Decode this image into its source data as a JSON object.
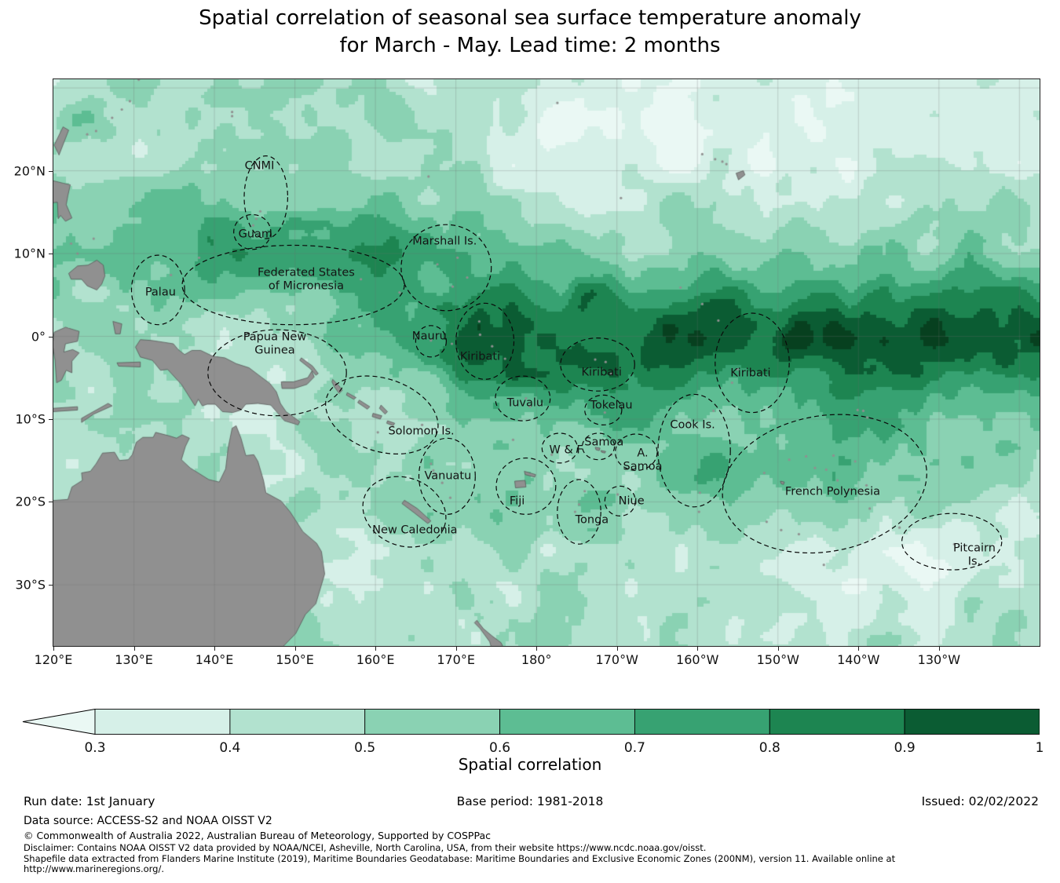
{
  "title": {
    "line1": "Spatial correlation of seasonal sea surface temperature anomaly",
    "line2": "for March - May. Lead time: 2 months"
  },
  "chart_data": {
    "type": "heatmap",
    "title": "Spatial correlation of seasonal sea surface temperature anomaly for March - May. Lead time: 2 months",
    "x_axis": {
      "tick_labels": [
        "120°E",
        "130°E",
        "140°E",
        "150°E",
        "160°E",
        "170°E",
        "180°",
        "170°W",
        "160°W",
        "150°W",
        "140°W",
        "130°W"
      ],
      "ticks_deg_east": [
        120,
        130,
        140,
        150,
        160,
        170,
        180,
        190,
        200,
        210,
        220,
        230
      ],
      "range_deg_east": [
        120,
        242.5
      ]
    },
    "y_axis": {
      "tick_labels": [
        "20°N",
        "10°N",
        "0°",
        "10°S",
        "20°S",
        "30°S"
      ],
      "ticks_deg_north": [
        20,
        10,
        0,
        -10,
        -20,
        -30
      ],
      "range_deg_north": [
        -37.4,
        31.05
      ]
    },
    "colorbar": {
      "label": "Spatial correlation",
      "tick_labels": [
        "0.3",
        "0.4",
        "0.5",
        "0.6",
        "0.7",
        "0.8",
        "0.9",
        "1"
      ],
      "tick_values": [
        0.3,
        0.4,
        0.5,
        0.6,
        0.7,
        0.8,
        0.9,
        1
      ],
      "under_color": "#eaf8f4",
      "bin_colors": [
        "#d6f0e8",
        "#b2e2cf",
        "#8ad2b3",
        "#5dbd93",
        "#37a272",
        "#1d8551",
        "#0b5c33"
      ],
      "deep_core_color": "#07401f",
      "orientation": "horizontal",
      "extend": "min"
    },
    "land_color": "#909090",
    "grid": true,
    "field_pattern": [
      "Correlation > 0.9 along the equatorial Pacific (~5°N–8°S) east of the dateline to ~120°W",
      "High correlation 0.7–0.9 band across the western North Pacific 5–15°N, 135–170°E",
      "Moderate 0.6–0.8 over the central South Pacific around French Polynesia",
      "Low < 0.4 in the NE subtropics (20–30°N, 170–130°W), near Pitcairn, and the Tasman Sea"
    ],
    "regions": [
      {
        "label": "CNMI",
        "lon": 145.6,
        "lat": 20.5
      },
      {
        "label": "Guam",
        "lon": 145.1,
        "lat": 12.3
      },
      {
        "label": "Marshall Is.",
        "lon": 168.6,
        "lat": 11.4
      },
      {
        "label": "Federated States\nof Micronesia",
        "lon": 151.4,
        "lat": 6.8
      },
      {
        "label": "Palau",
        "lon": 133.3,
        "lat": 5.3
      },
      {
        "label": "Papua New\nGuinea",
        "lon": 147.5,
        "lat": -1.0
      },
      {
        "label": "Nauru",
        "lon": 166.7,
        "lat": 0.0
      },
      {
        "label": "Kiribati",
        "lon": 173.0,
        "lat": -2.5
      },
      {
        "label": "Kiribati",
        "lon": 188.1,
        "lat": -4.4
      },
      {
        "label": "Kiribati",
        "lon": 206.6,
        "lat": -4.5
      },
      {
        "label": "Tuvalu",
        "lon": 178.6,
        "lat": -8.1
      },
      {
        "label": "Tokelau",
        "lon": 189.3,
        "lat": -8.4
      },
      {
        "label": "Solomon Is.",
        "lon": 165.7,
        "lat": -11.5
      },
      {
        "label": "Cook Is.",
        "lon": 199.4,
        "lat": -10.8
      },
      {
        "label": "Samoa",
        "lon": 188.4,
        "lat": -12.8
      },
      {
        "label": "W & F",
        "lon": 183.7,
        "lat": -13.8
      },
      {
        "label": "A.\nSamoa",
        "lon": 193.2,
        "lat": -15.0
      },
      {
        "label": "Vanuatu",
        "lon": 169.0,
        "lat": -16.9
      },
      {
        "label": "French Polynesia",
        "lon": 216.8,
        "lat": -18.8
      },
      {
        "label": "Fiji",
        "lon": 177.6,
        "lat": -20.0
      },
      {
        "label": "Niue",
        "lon": 191.8,
        "lat": -20.0
      },
      {
        "label": "Tonga",
        "lon": 186.9,
        "lat": -22.2
      },
      {
        "label": "New Caledonia",
        "lon": 164.9,
        "lat": -23.5
      },
      {
        "label": "Pitcairn\nIs.",
        "lon": 234.4,
        "lat": -26.5
      }
    ]
  },
  "footer": {
    "run_date": "Run date: 1st January",
    "base_period": "Base period: 1981-2018",
    "issued": "Issued: 02/02/2022",
    "data_source": "Data source: ACCESS-S2 and NOAA OISST V2",
    "copyright": "© Commonwealth of Australia 2022, Australian Bureau of Meteorology, Supported by COSPPac",
    "disclaimer": "Disclaimer: Contains NOAA OISST V2 data provided by NOAA/NCEI, Asheville, North Carolina, USA, from their website https://www.ncdc.noaa.gov/oisst.",
    "shapefile_note": "Shapefile data extracted from Flanders Marine Institute (2019), Maritime Boundaries Geodatabase: Maritime Boundaries and Exclusive Economic Zones (200NM), version 11. Available online at",
    "url": "http://www.marineregions.org/."
  }
}
